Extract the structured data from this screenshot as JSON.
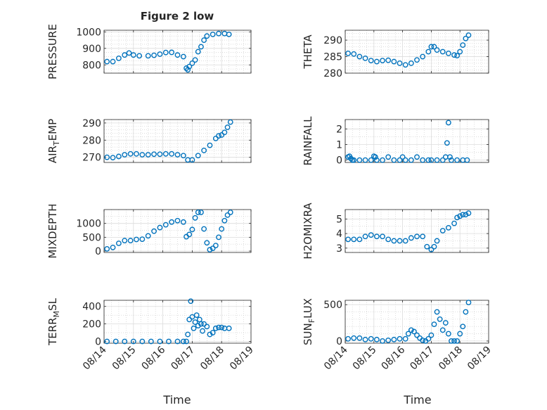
{
  "figure": {
    "title": "Figure 2 low",
    "xlabel": "Time",
    "marker_color": "#0072BD",
    "grid": true,
    "minor_grid": true,
    "box": true
  },
  "chart_data": [
    {
      "type": "scatter",
      "title": "Figure 2 low",
      "ylabel": "PRESSURE",
      "ylabel_parts": [
        {
          "text": "PRESSURE"
        }
      ],
      "xlim": [
        0,
        5
      ],
      "ylim": [
        750,
        1010
      ],
      "x_ticks": [
        0,
        1,
        2,
        3,
        4,
        5
      ],
      "x_tick_labels": [
        "08/14",
        "08/15",
        "08/16",
        "08/17",
        "08/18",
        "08/19"
      ],
      "show_x_tick_labels": false,
      "y_ticks": [
        800,
        900,
        1000
      ],
      "y_tick_labels": [
        "800",
        "900",
        "1000"
      ],
      "y_minor": [
        750,
        775,
        825,
        850,
        875,
        925,
        950,
        975
      ],
      "series": [
        {
          "x": [
            0.1,
            0.3,
            0.5,
            0.7,
            0.85,
            1.0,
            1.2,
            1.5,
            1.7,
            1.9,
            2.1,
            2.3,
            2.5,
            2.7,
            2.8,
            2.85,
            2.9,
            3.0,
            3.1,
            3.2,
            3.3,
            3.4,
            3.5,
            3.7,
            3.9,
            4.1,
            4.25
          ],
          "y": [
            820,
            820,
            840,
            860,
            872,
            860,
            855,
            855,
            858,
            865,
            875,
            876,
            860,
            850,
            780,
            770,
            790,
            810,
            830,
            880,
            910,
            950,
            975,
            985,
            990,
            990,
            985
          ]
        }
      ]
    },
    {
      "type": "scatter",
      "ylabel": "THETA",
      "ylabel_parts": [
        {
          "text": "THETA"
        }
      ],
      "xlim": [
        0,
        5
      ],
      "ylim": [
        280,
        293
      ],
      "x_ticks": [
        0,
        1,
        2,
        3,
        4,
        5
      ],
      "x_tick_labels": [
        "08/14",
        "08/15",
        "08/16",
        "08/17",
        "08/18",
        "08/19"
      ],
      "show_x_tick_labels": false,
      "y_ticks": [
        280,
        285,
        290
      ],
      "y_tick_labels": [
        "280",
        "285",
        "290"
      ],
      "y_minor": [
        281,
        282,
        283,
        284,
        286,
        287,
        288,
        289,
        291,
        292
      ],
      "series": [
        {
          "x": [
            0.1,
            0.3,
            0.5,
            0.7,
            0.9,
            1.1,
            1.3,
            1.5,
            1.7,
            1.9,
            2.1,
            2.3,
            2.5,
            2.7,
            2.9,
            3.0,
            3.1,
            3.2,
            3.4,
            3.6,
            3.8,
            3.9,
            4.0,
            4.1,
            4.2,
            4.3
          ],
          "y": [
            286,
            285.8,
            285,
            284.5,
            283.8,
            283.5,
            283.8,
            283.9,
            283.5,
            283,
            282.5,
            283,
            284,
            285,
            286.5,
            288,
            288,
            287,
            286.5,
            286,
            285.5,
            285.3,
            286.5,
            288.5,
            290.5,
            291.5
          ]
        }
      ]
    },
    {
      "type": "scatter",
      "ylabel": "AIR_TEMP",
      "ylabel_parts": [
        {
          "text": "AIR"
        },
        {
          "text": "T",
          "sub": true
        },
        {
          "text": "EMP"
        }
      ],
      "xlim": [
        0,
        5
      ],
      "ylim": [
        267,
        292
      ],
      "x_ticks": [
        0,
        1,
        2,
        3,
        4,
        5
      ],
      "x_tick_labels": [
        "08/14",
        "08/15",
        "08/16",
        "08/17",
        "08/18",
        "08/19"
      ],
      "show_x_tick_labels": false,
      "y_ticks": [
        270,
        280,
        290
      ],
      "y_tick_labels": [
        "270",
        "280",
        "290"
      ],
      "y_minor": [
        272,
        274,
        276,
        278,
        282,
        284,
        286,
        288
      ],
      "series": [
        {
          "x": [
            0.1,
            0.3,
            0.5,
            0.7,
            0.9,
            1.1,
            1.3,
            1.5,
            1.7,
            1.9,
            2.1,
            2.3,
            2.5,
            2.7,
            2.85,
            3.0,
            3.2,
            3.4,
            3.6,
            3.8,
            3.9,
            4.0,
            4.1,
            4.2,
            4.3
          ],
          "y": [
            270,
            269.8,
            270.5,
            271.5,
            272,
            272,
            271.5,
            271.5,
            271.8,
            271.8,
            272,
            272,
            271.5,
            271,
            268.5,
            268.5,
            271,
            274,
            277,
            281,
            282.5,
            283,
            284.5,
            287.5,
            290.5
          ]
        }
      ]
    },
    {
      "type": "scatter",
      "ylabel": "RAINFALL",
      "ylabel_parts": [
        {
          "text": "RAINFALL"
        }
      ],
      "xlim": [
        0,
        5
      ],
      "ylim": [
        -0.15,
        2.6
      ],
      "x_ticks": [
        0,
        1,
        2,
        3,
        4,
        5
      ],
      "x_tick_labels": [
        "08/14",
        "08/15",
        "08/16",
        "08/17",
        "08/18",
        "08/19"
      ],
      "show_x_tick_labels": false,
      "y_ticks": [
        0,
        1,
        2
      ],
      "y_tick_labels": [
        "0",
        "1",
        "2"
      ],
      "y_minor": [
        0.5,
        1.5
      ],
      "series": [
        {
          "x": [
            0.1,
            0.15,
            0.2,
            0.25,
            0.3,
            0.5,
            0.7,
            0.9,
            1.0,
            1.05,
            1.1,
            1.3,
            1.5,
            1.7,
            1.9,
            2.0,
            2.1,
            2.3,
            2.5,
            2.7,
            2.9,
            3.0,
            3.2,
            3.4,
            3.5,
            3.55,
            3.6,
            3.65,
            3.7,
            3.9,
            4.1,
            4.25
          ],
          "y": [
            0.2,
            0.25,
            0.1,
            0,
            0,
            0,
            0,
            0,
            0.25,
            0.2,
            0,
            0,
            0.2,
            0,
            0,
            0.2,
            0,
            0,
            0.2,
            0,
            0,
            0,
            0,
            0,
            0.2,
            1.1,
            2.4,
            0.2,
            0,
            0,
            0,
            0
          ]
        }
      ]
    },
    {
      "type": "scatter",
      "ylabel": "MIXDEPTH",
      "ylabel_parts": [
        {
          "text": "MIXDEPTH"
        }
      ],
      "xlim": [
        0,
        5
      ],
      "ylim": [
        -50,
        1500
      ],
      "x_ticks": [
        0,
        1,
        2,
        3,
        4,
        5
      ],
      "x_tick_labels": [
        "08/14",
        "08/15",
        "08/16",
        "08/17",
        "08/18",
        "08/19"
      ],
      "show_x_tick_labels": false,
      "y_ticks": [
        0,
        500,
        1000
      ],
      "y_tick_labels": [
        "0",
        "500",
        "1000"
      ],
      "y_minor": [
        250,
        750,
        1250
      ],
      "series": [
        {
          "x": [
            0.1,
            0.3,
            0.5,
            0.7,
            0.9,
            1.1,
            1.3,
            1.5,
            1.7,
            1.9,
            2.1,
            2.3,
            2.5,
            2.7,
            2.8,
            2.9,
            3.0,
            3.1,
            3.2,
            3.3,
            3.4,
            3.5,
            3.6,
            3.7,
            3.8,
            3.9,
            4.0,
            4.1,
            4.2,
            4.3
          ],
          "y": [
            80,
            130,
            280,
            380,
            380,
            420,
            430,
            550,
            720,
            850,
            950,
            1050,
            1100,
            1050,
            520,
            600,
            780,
            1200,
            1400,
            1400,
            800,
            300,
            50,
            100,
            200,
            500,
            800,
            1100,
            1300,
            1400
          ]
        }
      ]
    },
    {
      "type": "scatter",
      "ylabel": "H2OMIXRA",
      "ylabel_parts": [
        {
          "text": "H2OMIXRA"
        }
      ],
      "xlim": [
        0,
        5
      ],
      "ylim": [
        2.7,
        5.65
      ],
      "x_ticks": [
        0,
        1,
        2,
        3,
        4,
        5
      ],
      "x_tick_labels": [
        "08/14",
        "08/15",
        "08/16",
        "08/17",
        "08/18",
        "08/19"
      ],
      "show_x_tick_labels": false,
      "y_ticks": [
        3,
        4,
        5
      ],
      "y_tick_labels": [
        "3",
        "4",
        "5"
      ],
      "y_minor": [
        3.5,
        4.5
      ],
      "series": [
        {
          "x": [
            0.1,
            0.3,
            0.5,
            0.7,
            0.9,
            1.1,
            1.3,
            1.5,
            1.7,
            1.9,
            2.1,
            2.3,
            2.5,
            2.7,
            2.85,
            3.0,
            3.1,
            3.2,
            3.4,
            3.6,
            3.8,
            3.9,
            4.0,
            4.1,
            4.2,
            4.3
          ],
          "y": [
            3.6,
            3.6,
            3.6,
            3.8,
            3.9,
            3.8,
            3.8,
            3.6,
            3.5,
            3.5,
            3.5,
            3.7,
            3.8,
            3.8,
            3.1,
            2.9,
            3.1,
            3.5,
            4.2,
            4.4,
            4.7,
            5.1,
            5.2,
            5.3,
            5.3,
            5.4
          ]
        }
      ]
    },
    {
      "type": "scatter",
      "ylabel": "TERR_MSL",
      "ylabel_parts": [
        {
          "text": "TERR"
        },
        {
          "text": "M",
          "sub": true
        },
        {
          "text": "SL"
        }
      ],
      "xlim": [
        0,
        5
      ],
      "ylim": [
        -20,
        470
      ],
      "x_ticks": [
        0,
        1,
        2,
        3,
        4,
        5
      ],
      "x_tick_labels": [
        "08/14",
        "08/15",
        "08/16",
        "08/17",
        "08/18",
        "08/19"
      ],
      "show_x_tick_labels": true,
      "y_ticks": [
        0,
        200,
        400
      ],
      "y_tick_labels": [
        "0",
        "200",
        "400"
      ],
      "y_minor": [
        100,
        300
      ],
      "series": [
        {
          "x": [
            0.1,
            0.4,
            0.7,
            1.0,
            1.3,
            1.6,
            1.9,
            2.2,
            2.5,
            2.7,
            2.8,
            2.85,
            2.9,
            2.95,
            3.0,
            3.05,
            3.1,
            3.15,
            3.2,
            3.25,
            3.3,
            3.35,
            3.4,
            3.5,
            3.6,
            3.7,
            3.8,
            3.9,
            4.0,
            4.1,
            4.25
          ],
          "y": [
            0,
            0,
            0,
            0,
            0,
            0,
            0,
            0,
            0,
            0,
            0,
            80,
            250,
            460,
            280,
            150,
            220,
            300,
            180,
            250,
            200,
            120,
            200,
            170,
            80,
            100,
            150,
            160,
            160,
            150,
            150
          ]
        }
      ]
    },
    {
      "type": "scatter",
      "ylabel": "SUN_FLUX",
      "ylabel_parts": [
        {
          "text": "SUN"
        },
        {
          "text": "F",
          "sub": true
        },
        {
          "text": "LUX"
        }
      ],
      "xlim": [
        0,
        5
      ],
      "ylim": [
        -30,
        560
      ],
      "x_ticks": [
        0,
        1,
        2,
        3,
        4,
        5
      ],
      "x_tick_labels": [
        "08/14",
        "08/15",
        "08/16",
        "08/17",
        "08/18",
        "08/19"
      ],
      "show_x_tick_labels": true,
      "y_ticks": [
        0,
        500
      ],
      "y_tick_labels": [
        "0",
        "500"
      ],
      "y_minor": [
        100,
        200,
        300,
        400
      ],
      "series": [
        {
          "x": [
            0.1,
            0.3,
            0.5,
            0.7,
            0.9,
            1.1,
            1.3,
            1.5,
            1.7,
            1.9,
            2.1,
            2.2,
            2.3,
            2.4,
            2.5,
            2.6,
            2.7,
            2.8,
            2.9,
            3.0,
            3.1,
            3.2,
            3.3,
            3.4,
            3.5,
            3.6,
            3.7,
            3.8,
            3.9,
            4.0,
            4.1,
            4.2,
            4.3
          ],
          "y": [
            30,
            40,
            40,
            20,
            30,
            20,
            0,
            10,
            20,
            30,
            30,
            100,
            150,
            130,
            80,
            40,
            10,
            0,
            30,
            80,
            230,
            400,
            300,
            150,
            250,
            100,
            0,
            0,
            0,
            100,
            200,
            400,
            530
          ]
        }
      ]
    }
  ]
}
